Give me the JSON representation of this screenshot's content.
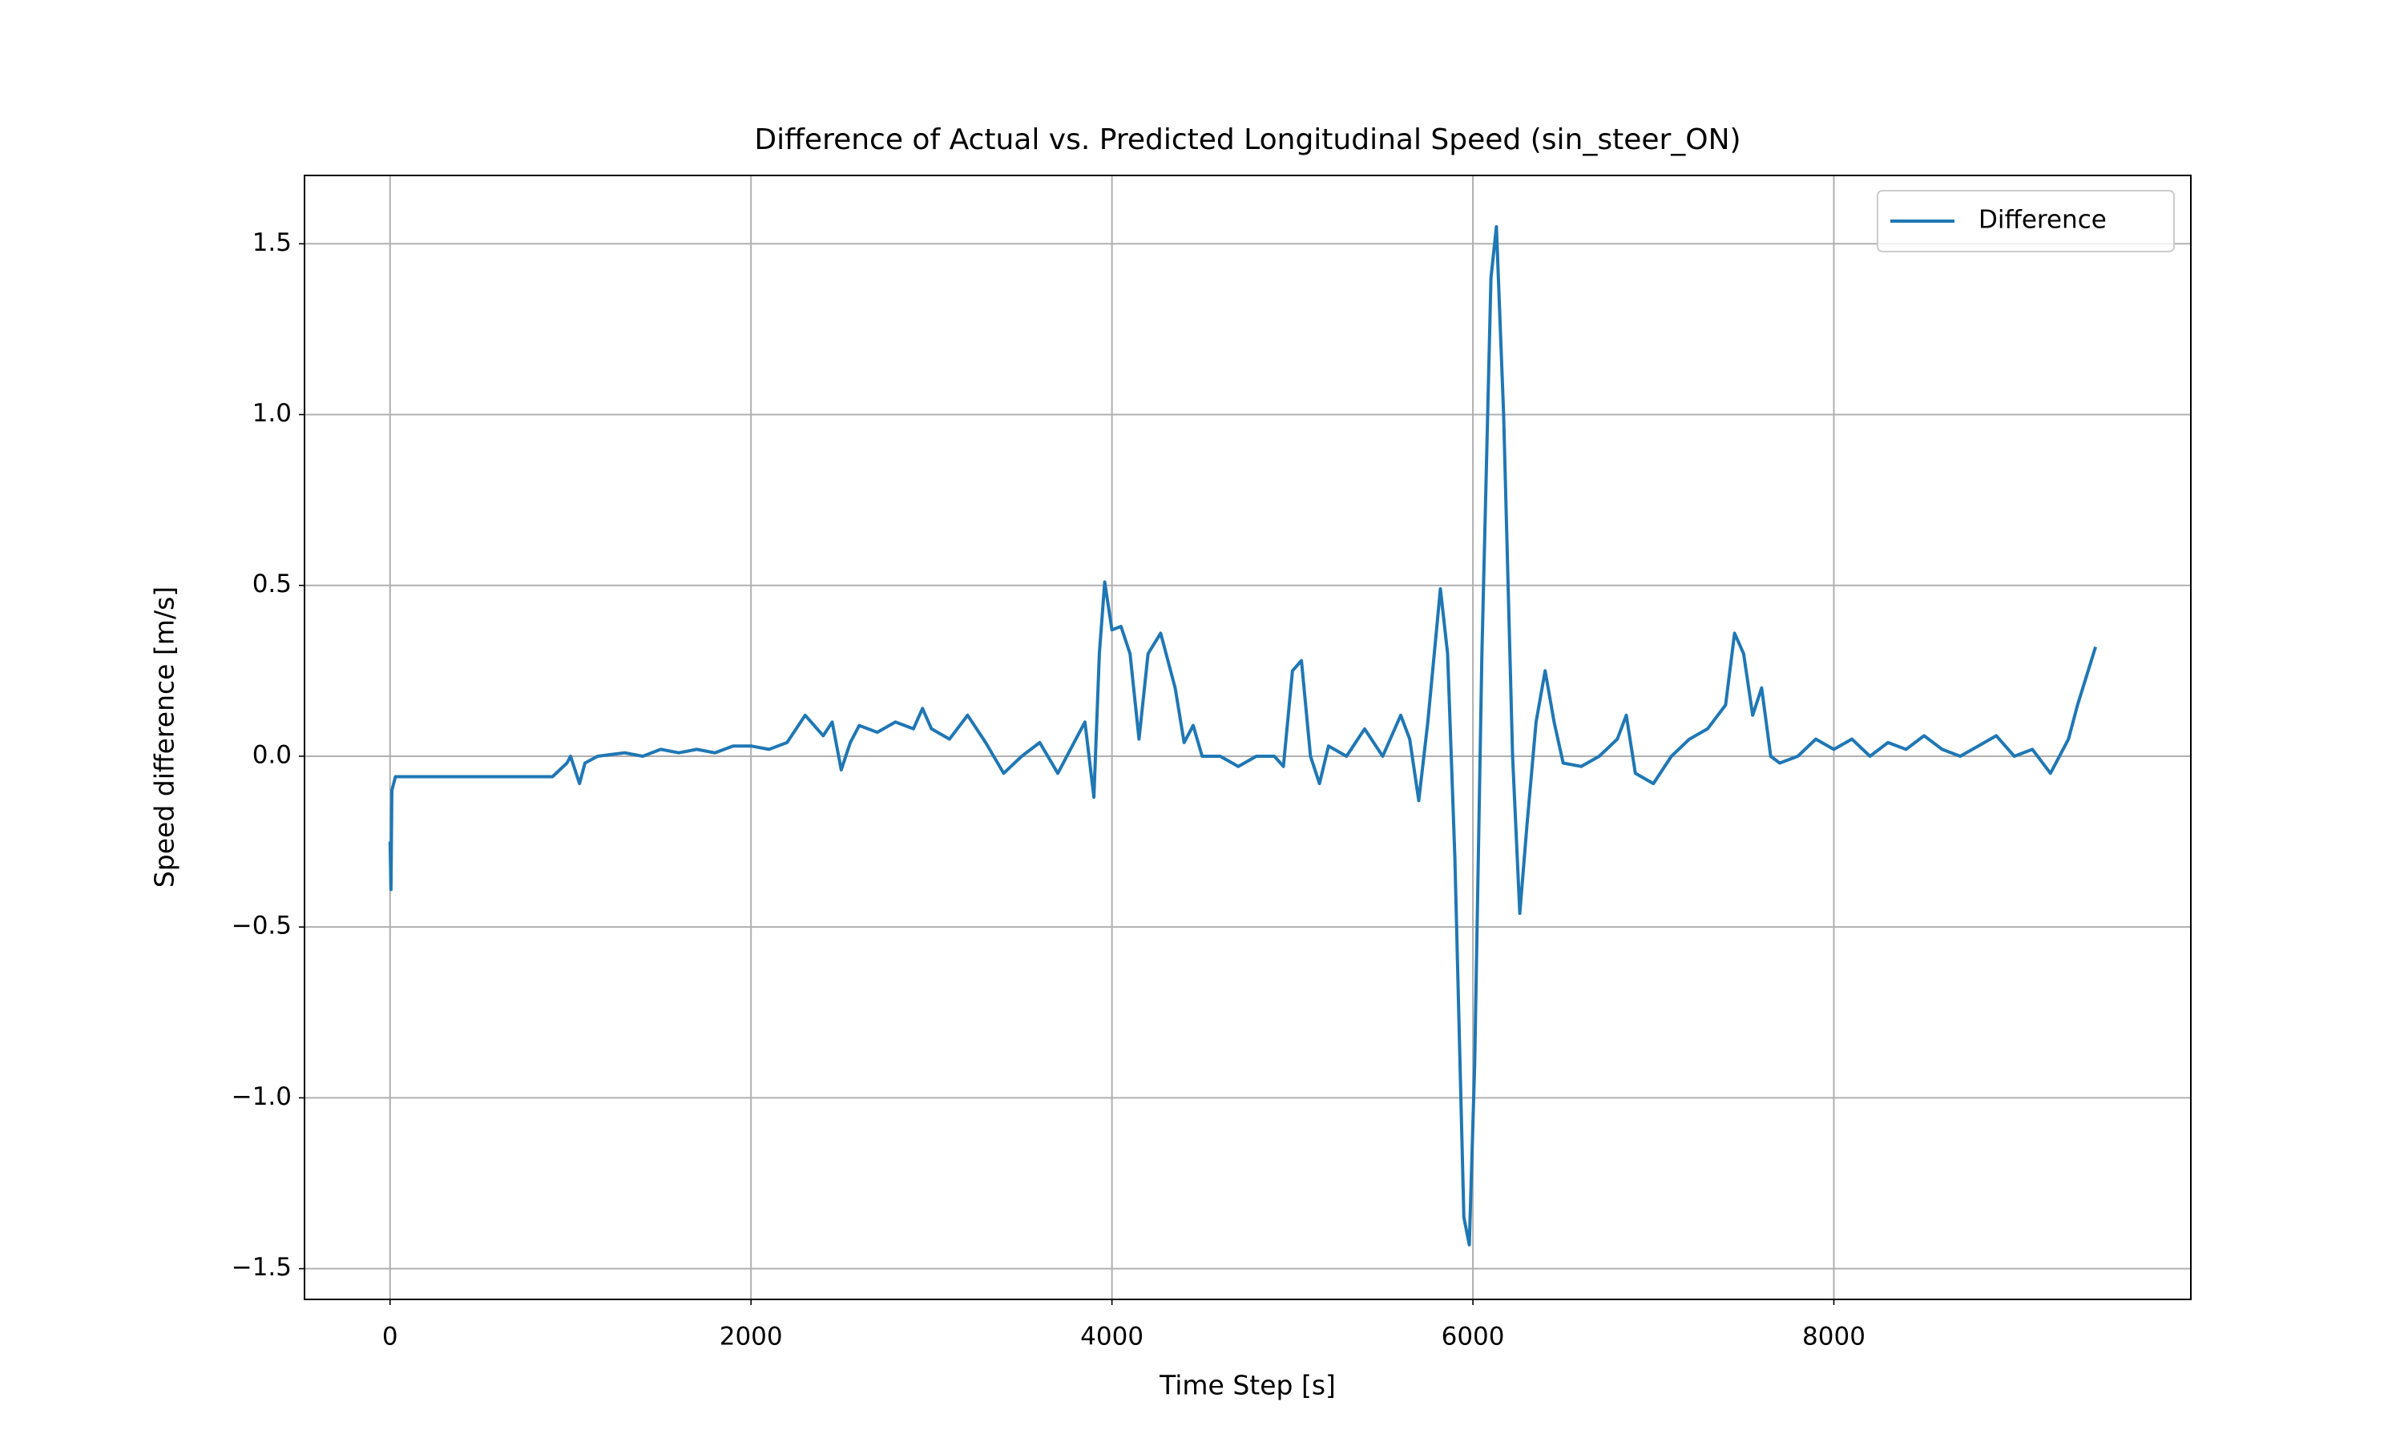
{
  "chart_data": {
    "type": "line",
    "title": "Difference of Actual vs. Predicted Longitudinal Speed (sin_steer_ON)",
    "xlabel": "Time Step [s]",
    "ylabel": "Speed difference [m/s]",
    "xlim": [
      -474,
      9978
    ],
    "ylim": [
      -1.59,
      1.7
    ],
    "xticks": [
      0,
      2000,
      4000,
      6000,
      8000
    ],
    "yticks": [
      {
        "value": -1.5,
        "label": "−1.5"
      },
      {
        "value": -1.0,
        "label": "−1.0"
      },
      {
        "value": -0.5,
        "label": "−0.5"
      },
      {
        "value": 0,
        "label": "0.0"
      },
      0.5,
      {
        "value": 1.0,
        "label": "1.0"
      },
      1.5
    ],
    "grid": true,
    "legend": "upper right",
    "series": [
      {
        "name": "Difference",
        "color": "#1f77b4",
        "x": [
          0,
          5,
          10,
          30,
          900,
          980,
          1000,
          1050,
          1080,
          1150,
          1300,
          1400,
          1500,
          1600,
          1700,
          1800,
          1900,
          2000,
          2100,
          2200,
          2300,
          2400,
          2450,
          2500,
          2550,
          2600,
          2700,
          2800,
          2900,
          2950,
          3000,
          3100,
          3200,
          3300,
          3400,
          3500,
          3600,
          3700,
          3800,
          3850,
          3900,
          3930,
          3960,
          4000,
          4050,
          4100,
          4150,
          4200,
          4270,
          4350,
          4400,
          4450,
          4500,
          4600,
          4700,
          4800,
          4900,
          4950,
          5000,
          5050,
          5100,
          5150,
          5200,
          5300,
          5400,
          5500,
          5600,
          5650,
          5700,
          5750,
          5820,
          5860,
          5900,
          5950,
          5980,
          6010,
          6050,
          6100,
          6130,
          6170,
          6220,
          6260,
          6300,
          6350,
          6400,
          6450,
          6500,
          6600,
          6700,
          6800,
          6850,
          6900,
          7000,
          7100,
          7200,
          7300,
          7400,
          7450,
          7500,
          7550,
          7600,
          7650,
          7700,
          7800,
          7900,
          8000,
          8100,
          8200,
          8300,
          8400,
          8500,
          8600,
          8700,
          8800,
          8900,
          9000,
          9100,
          9200,
          9300,
          9350,
          9450
        ],
        "values": [
          -0.25,
          -0.39,
          -0.1,
          -0.06,
          -0.06,
          -0.02,
          0.0,
          -0.08,
          -0.02,
          0.0,
          0.01,
          0.0,
          0.02,
          0.01,
          0.02,
          0.01,
          0.03,
          0.03,
          0.02,
          0.04,
          0.12,
          0.06,
          0.1,
          -0.04,
          0.04,
          0.09,
          0.07,
          0.1,
          0.08,
          0.14,
          0.08,
          0.05,
          0.12,
          0.04,
          -0.05,
          0.0,
          0.04,
          -0.05,
          0.05,
          0.1,
          -0.12,
          0.3,
          0.51,
          0.37,
          0.38,
          0.3,
          0.05,
          0.3,
          0.36,
          0.2,
          0.04,
          0.09,
          0.0,
          0.0,
          -0.03,
          0.0,
          0.0,
          -0.03,
          0.25,
          0.28,
          0.0,
          -0.08,
          0.03,
          0.0,
          0.08,
          0.0,
          0.12,
          0.05,
          -0.13,
          0.1,
          0.49,
          0.3,
          -0.3,
          -1.35,
          -1.43,
          -0.9,
          0.3,
          1.4,
          1.55,
          1.0,
          0.0,
          -0.46,
          -0.2,
          0.1,
          0.25,
          0.1,
          -0.02,
          -0.03,
          0.0,
          0.05,
          0.12,
          -0.05,
          -0.08,
          0.0,
          0.05,
          0.08,
          0.15,
          0.36,
          0.3,
          0.12,
          0.2,
          0.0,
          -0.02,
          0.0,
          0.05,
          0.02,
          0.05,
          0.0,
          0.04,
          0.02,
          0.06,
          0.02,
          0.0,
          0.03,
          0.06,
          0.0,
          0.02,
          -0.05,
          0.05,
          0.15,
          0.32
        ]
      }
    ]
  }
}
